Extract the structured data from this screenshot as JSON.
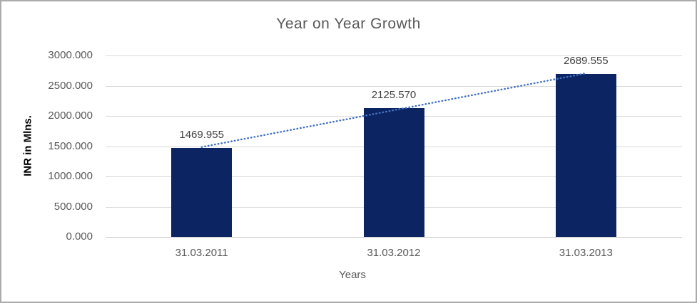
{
  "chart_data": {
    "type": "bar",
    "title": "Year on Year Growth",
    "xlabel": "Years",
    "ylabel": "INR in Mlns.",
    "categories": [
      "31.03.2011",
      "31.03.2012",
      "31.03.2013"
    ],
    "values": [
      1469.955,
      2125.57,
      2689.555
    ],
    "data_labels": [
      "1469.955",
      "2125.570",
      "2689.555"
    ],
    "yticks": [
      "3000.000",
      "2500.000",
      "2000.000",
      "1500.000",
      "1000.000",
      "500.000",
      "0.000"
    ],
    "ylim": [
      0,
      3000
    ],
    "grid": "horizontal",
    "legend": "none",
    "trendline": {
      "type": "linear",
      "style": "dotted"
    },
    "colors": {
      "bar": "#0c2461",
      "trendline": "#4472c4",
      "gridline": "#d9d9d9",
      "axis_line": "#c6c6c6",
      "title_text": "#595959",
      "tick_text": "#595959",
      "data_label_text": "#404040",
      "y_axis_title_text": "#000000",
      "canvas_border": "#ababab",
      "background": "#ffffff"
    }
  }
}
